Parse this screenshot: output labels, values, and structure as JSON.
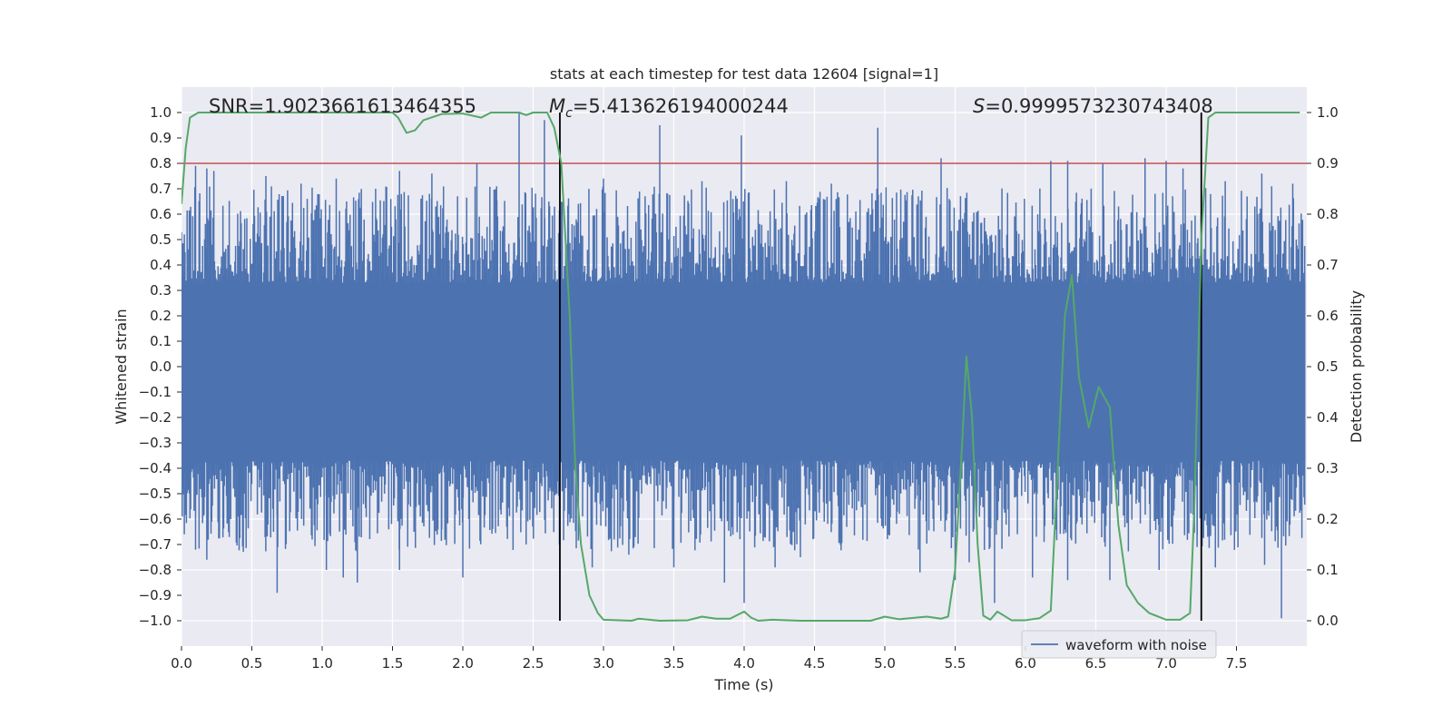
{
  "chart_data": {
    "type": "line",
    "title": "stats at each timestep for test data 12604 [signal=1]",
    "xlabel": "Time (s)",
    "ylabel": "Whitened strain",
    "y2label": "Detection probability",
    "xlim": [
      0.0,
      8.0
    ],
    "ylim": [
      -1.1,
      1.1
    ],
    "y2lim": [
      -0.05,
      1.05
    ],
    "x_ticks": [
      0.0,
      0.5,
      1.0,
      1.5,
      2.0,
      2.5,
      3.0,
      3.5,
      4.0,
      4.5,
      5.0,
      5.5,
      6.0,
      6.5,
      7.0,
      7.5
    ],
    "x_tick_labels": [
      "0.0",
      "0.5",
      "1.0",
      "1.5",
      "2.0",
      "2.5",
      "3.0",
      "3.5",
      "4.0",
      "4.5",
      "5.0",
      "5.5",
      "6.0",
      "6.5",
      "7.0",
      "7.5"
    ],
    "y_ticks": [
      1.0,
      0.9,
      0.8,
      0.7,
      0.6,
      0.5,
      0.4,
      0.3,
      0.2,
      0.1,
      0.0,
      -0.1,
      -0.2,
      -0.3,
      -0.4,
      -0.5,
      -0.6,
      -0.7,
      -0.8,
      -0.9,
      -1.0
    ],
    "y_tick_labels": [
      "1.0",
      "0.9",
      "0.8",
      "0.7",
      "0.6",
      "0.5",
      "0.4",
      "0.3",
      "0.2",
      "0.1",
      "0.0",
      "−0.1",
      "−0.2",
      "−0.3",
      "−0.4",
      "−0.5",
      "−0.6",
      "−0.7",
      "−0.8",
      "−0.9",
      "−1.0"
    ],
    "y2_ticks": [
      1.0,
      0.9,
      0.8,
      0.7,
      0.6,
      0.5,
      0.4,
      0.3,
      0.2,
      0.1,
      0.0
    ],
    "y2_tick_labels": [
      "1.0",
      "0.9",
      "0.8",
      "0.7",
      "0.6",
      "0.5",
      "0.4",
      "0.3",
      "0.2",
      "0.1",
      "0.0"
    ],
    "annotations": {
      "snr": "SNR=1.9023661613464355",
      "mc_symbol": "M",
      "mc_sub": "c",
      "mc_value": "=5.413626194000244",
      "s_symbol": "S",
      "s_value": "=0.9999573230743408"
    },
    "threshold": 0.9,
    "vlines": [
      2.69,
      7.25
    ],
    "legend": {
      "label": "waveform with noise",
      "position": "lower-right"
    },
    "waveform": {
      "name": "waveform with noise",
      "color": "#4c72b0",
      "dense_amplitude_range": [
        -0.37,
        0.33
      ],
      "upper_peaks": [
        [
          0.02,
          0.52
        ],
        [
          0.1,
          0.79
        ],
        [
          0.18,
          0.78
        ],
        [
          0.23,
          0.77
        ],
        [
          0.6,
          0.75
        ],
        [
          0.85,
          0.72
        ],
        [
          1.1,
          0.74
        ],
        [
          1.38,
          0.7
        ],
        [
          1.55,
          0.77
        ],
        [
          1.78,
          0.76
        ],
        [
          2.1,
          0.8
        ],
        [
          2.24,
          0.71
        ],
        [
          2.4,
          1.0
        ],
        [
          2.58,
          0.97
        ],
        [
          3.0,
          0.74
        ],
        [
          3.4,
          0.95
        ],
        [
          3.7,
          0.73
        ],
        [
          3.98,
          0.91
        ],
        [
          4.3,
          0.73
        ],
        [
          4.62,
          0.72
        ],
        [
          4.95,
          0.94
        ],
        [
          5.4,
          0.82
        ],
        [
          6.18,
          0.81
        ],
        [
          6.3,
          0.81
        ],
        [
          6.55,
          0.8
        ],
        [
          6.85,
          0.82
        ],
        [
          7.0,
          0.81
        ],
        [
          7.12,
          0.78
        ],
        [
          7.42,
          0.73
        ],
        [
          7.68,
          0.76
        ],
        [
          7.9,
          0.72
        ]
      ],
      "lower_peaks": [
        [
          0.02,
          -0.66
        ],
        [
          0.1,
          -0.72
        ],
        [
          0.18,
          -0.76
        ],
        [
          0.35,
          -0.6
        ],
        [
          0.68,
          -0.89
        ],
        [
          1.03,
          -0.8
        ],
        [
          1.15,
          -0.83
        ],
        [
          1.25,
          -0.85
        ],
        [
          1.55,
          -0.8
        ],
        [
          1.85,
          -0.64
        ],
        [
          2.0,
          -0.83
        ],
        [
          2.45,
          -0.7
        ],
        [
          2.68,
          -0.5
        ],
        [
          2.92,
          -0.79
        ],
        [
          3.18,
          -0.74
        ],
        [
          3.5,
          -0.79
        ],
        [
          3.86,
          -0.85
        ],
        [
          4.0,
          -0.93
        ],
        [
          4.22,
          -0.79
        ],
        [
          4.4,
          -0.75
        ],
        [
          5.25,
          -0.81
        ],
        [
          5.5,
          -0.84
        ],
        [
          5.6,
          -0.77
        ],
        [
          5.78,
          -0.93
        ],
        [
          6.05,
          -0.83
        ],
        [
          6.3,
          -0.84
        ],
        [
          6.6,
          -0.84
        ],
        [
          6.95,
          -0.8
        ],
        [
          7.22,
          -0.71
        ],
        [
          7.35,
          -0.79
        ],
        [
          7.7,
          -0.78
        ],
        [
          7.82,
          -0.99
        ]
      ]
    },
    "probability": {
      "name": "Detection probability",
      "color": "#55a868",
      "points": [
        [
          0.0,
          0.82
        ],
        [
          0.03,
          0.93
        ],
        [
          0.06,
          0.99
        ],
        [
          0.12,
          1.0
        ],
        [
          0.3,
          1.0
        ],
        [
          0.6,
          1.0
        ],
        [
          1.0,
          1.0
        ],
        [
          1.5,
          1.0
        ],
        [
          1.54,
          0.99
        ],
        [
          1.6,
          0.96
        ],
        [
          1.66,
          0.965
        ],
        [
          1.72,
          0.985
        ],
        [
          1.85,
          0.997
        ],
        [
          2.0,
          0.998
        ],
        [
          2.05,
          0.995
        ],
        [
          2.13,
          0.99
        ],
        [
          2.2,
          1.0
        ],
        [
          2.4,
          1.0
        ],
        [
          2.45,
          0.995
        ],
        [
          2.5,
          1.0
        ],
        [
          2.6,
          1.0
        ],
        [
          2.65,
          0.97
        ],
        [
          2.7,
          0.9
        ],
        [
          2.76,
          0.6
        ],
        [
          2.8,
          0.3
        ],
        [
          2.84,
          0.15
        ],
        [
          2.9,
          0.05
        ],
        [
          2.96,
          0.015
        ],
        [
          3.0,
          0.002
        ],
        [
          3.2,
          0.0
        ],
        [
          3.25,
          0.004
        ],
        [
          3.4,
          0.0
        ],
        [
          3.6,
          0.001
        ],
        [
          3.7,
          0.008
        ],
        [
          3.8,
          0.004
        ],
        [
          3.9,
          0.004
        ],
        [
          4.0,
          0.018
        ],
        [
          4.05,
          0.006
        ],
        [
          4.1,
          0.0
        ],
        [
          4.2,
          0.002
        ],
        [
          4.4,
          0.0
        ],
        [
          4.8,
          0.0
        ],
        [
          4.9,
          0.0
        ],
        [
          5.0,
          0.008
        ],
        [
          5.1,
          0.003
        ],
        [
          5.3,
          0.008
        ],
        [
          5.4,
          0.004
        ],
        [
          5.45,
          0.008
        ],
        [
          5.5,
          0.1
        ],
        [
          5.55,
          0.35
        ],
        [
          5.58,
          0.52
        ],
        [
          5.62,
          0.4
        ],
        [
          5.66,
          0.15
        ],
        [
          5.7,
          0.01
        ],
        [
          5.75,
          0.002
        ],
        [
          5.8,
          0.018
        ],
        [
          5.9,
          0.001
        ],
        [
          6.0,
          0.001
        ],
        [
          6.1,
          0.005
        ],
        [
          6.18,
          0.02
        ],
        [
          6.22,
          0.25
        ],
        [
          6.28,
          0.6
        ],
        [
          6.33,
          0.68
        ],
        [
          6.38,
          0.48
        ],
        [
          6.45,
          0.38
        ],
        [
          6.52,
          0.46
        ],
        [
          6.6,
          0.42
        ],
        [
          6.66,
          0.19
        ],
        [
          6.72,
          0.07
        ],
        [
          6.8,
          0.035
        ],
        [
          6.88,
          0.015
        ],
        [
          7.0,
          0.002
        ],
        [
          7.1,
          0.002
        ],
        [
          7.17,
          0.015
        ],
        [
          7.2,
          0.22
        ],
        [
          7.25,
          0.75
        ],
        [
          7.3,
          0.99
        ],
        [
          7.35,
          1.0
        ],
        [
          7.6,
          1.0
        ],
        [
          7.95,
          1.0
        ]
      ]
    }
  }
}
